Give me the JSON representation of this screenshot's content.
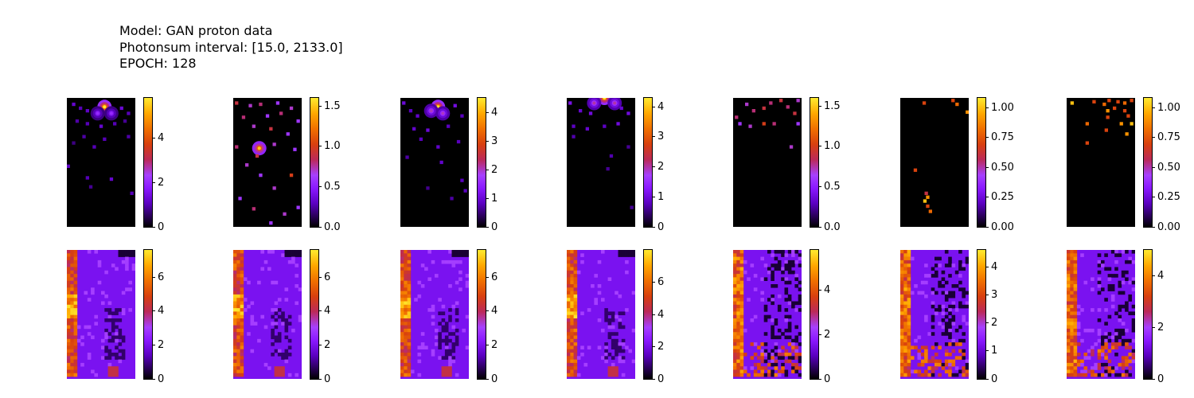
{
  "header": {
    "model": "Model: GAN proton data",
    "photonsum": "Photonsum interval: [15.0, 2133.0]",
    "epoch": "EPOCH: 128"
  },
  "colors": {
    "cmap_stops": [
      "#000000",
      "#5a00c0",
      "#8a19ff",
      "#bb2a5a",
      "#d8400f",
      "#f07000",
      "#ffa800",
      "#ffea30"
    ],
    "background": "#000000"
  },
  "chart_data": [
    {
      "type": "heatmap",
      "row": "top",
      "column": 1,
      "cmap": "gnuplot",
      "colorbar": {
        "ticks": [
          "0",
          "2",
          "4"
        ],
        "tick_values": [
          0,
          2,
          4
        ],
        "max": 5.8
      },
      "hotspots": [
        [
          0.55,
          0.07,
          5.8
        ],
        [
          0.45,
          0.12,
          2.0
        ],
        [
          0.65,
          0.12,
          2.0
        ]
      ],
      "points": [
        [
          0.1,
          0.05,
          1.2
        ],
        [
          0.2,
          0.08,
          1.0
        ],
        [
          0.3,
          0.1,
          1.1
        ],
        [
          0.8,
          0.08,
          1.3
        ],
        [
          0.9,
          0.12,
          1.0
        ],
        [
          0.15,
          0.18,
          0.9
        ],
        [
          0.3,
          0.2,
          1.0
        ],
        [
          0.5,
          0.22,
          1.2
        ],
        [
          0.7,
          0.2,
          1.0
        ],
        [
          0.85,
          0.18,
          0.8
        ],
        [
          0.25,
          0.3,
          0.9
        ],
        [
          0.55,
          0.32,
          1.0
        ],
        [
          0.1,
          0.35,
          0.7
        ],
        [
          0.9,
          0.3,
          0.9
        ],
        [
          0.4,
          0.38,
          1.0
        ],
        [
          0.02,
          0.53,
          1.1
        ],
        [
          0.3,
          0.62,
          1.0
        ],
        [
          0.65,
          0.63,
          1.2
        ],
        [
          0.35,
          0.69,
          0.8
        ],
        [
          0.95,
          0.74,
          1.0
        ]
      ]
    },
    {
      "type": "heatmap",
      "row": "top",
      "column": 2,
      "cmap": "gnuplot",
      "colorbar": {
        "ticks": [
          "0.0",
          "0.5",
          "1.0",
          "1.5"
        ],
        "tick_values": [
          0.0,
          0.5,
          1.0,
          1.5
        ],
        "max": 1.6
      },
      "hotspots": [
        [
          0.38,
          0.39,
          1.5
        ]
      ],
      "points": [
        [
          0.05,
          0.04,
          0.9
        ],
        [
          0.25,
          0.06,
          0.7
        ],
        [
          0.4,
          0.05,
          0.8
        ],
        [
          0.65,
          0.04,
          0.6
        ],
        [
          0.85,
          0.08,
          0.7
        ],
        [
          0.15,
          0.15,
          0.8
        ],
        [
          0.5,
          0.14,
          0.6
        ],
        [
          0.7,
          0.12,
          0.8
        ],
        [
          0.95,
          0.18,
          0.6
        ],
        [
          0.3,
          0.22,
          0.7
        ],
        [
          0.55,
          0.24,
          0.9
        ],
        [
          0.8,
          0.28,
          0.6
        ],
        [
          0.05,
          0.38,
          0.8
        ],
        [
          0.6,
          0.36,
          0.7
        ],
        [
          0.9,
          0.4,
          0.6
        ],
        [
          0.35,
          0.45,
          0.9
        ],
        [
          0.2,
          0.52,
          0.7
        ],
        [
          0.85,
          0.6,
          1.0
        ],
        [
          0.4,
          0.6,
          0.6
        ],
        [
          0.6,
          0.7,
          0.7
        ],
        [
          0.1,
          0.78,
          0.6
        ],
        [
          0.3,
          0.86,
          0.8
        ],
        [
          0.75,
          0.9,
          0.7
        ],
        [
          0.55,
          0.97,
          0.6
        ],
        [
          0.95,
          0.85,
          0.6
        ]
      ]
    },
    {
      "type": "heatmap",
      "row": "top",
      "column": 3,
      "cmap": "gnuplot",
      "colorbar": {
        "ticks": [
          "0",
          "1",
          "2",
          "3",
          "4"
        ],
        "tick_values": [
          0,
          1,
          2,
          3,
          4
        ],
        "max": 4.5
      },
      "hotspots": [
        [
          0.55,
          0.07,
          4.5
        ],
        [
          0.45,
          0.1,
          2.0
        ],
        [
          0.62,
          0.12,
          2.0
        ]
      ],
      "points": [
        [
          0.05,
          0.04,
          1.0
        ],
        [
          0.15,
          0.1,
          0.8
        ],
        [
          0.25,
          0.14,
          0.9
        ],
        [
          0.8,
          0.06,
          1.1
        ],
        [
          0.9,
          0.14,
          0.8
        ],
        [
          0.2,
          0.24,
          0.9
        ],
        [
          0.4,
          0.25,
          1.0
        ],
        [
          0.7,
          0.22,
          0.8
        ],
        [
          0.3,
          0.32,
          0.8
        ],
        [
          0.55,
          0.38,
          0.9
        ],
        [
          0.85,
          0.34,
          0.8
        ],
        [
          0.1,
          0.46,
          0.7
        ],
        [
          0.6,
          0.5,
          0.9
        ],
        [
          0.9,
          0.64,
          0.8
        ],
        [
          0.4,
          0.7,
          0.6
        ],
        [
          0.75,
          0.78,
          0.7
        ],
        [
          0.95,
          0.72,
          0.8
        ]
      ]
    },
    {
      "type": "heatmap",
      "row": "top",
      "column": 4,
      "cmap": "gnuplot",
      "colorbar": {
        "ticks": [
          "0",
          "1",
          "2",
          "3",
          "4"
        ],
        "tick_values": [
          0,
          1,
          2,
          3,
          4
        ],
        "max": 4.3
      },
      "hotspots": [
        [
          0.55,
          0.0,
          4.3
        ],
        [
          0.4,
          0.04,
          2.0
        ],
        [
          0.7,
          0.04,
          2.0
        ]
      ],
      "points": [
        [
          0.05,
          0.04,
          1.1
        ],
        [
          0.2,
          0.1,
          0.9
        ],
        [
          0.35,
          0.12,
          1.0
        ],
        [
          0.8,
          0.08,
          0.9
        ],
        [
          0.9,
          0.12,
          1.0
        ],
        [
          0.1,
          0.22,
          0.8
        ],
        [
          0.3,
          0.24,
          0.9
        ],
        [
          0.55,
          0.22,
          0.8
        ],
        [
          0.75,
          0.2,
          1.0
        ],
        [
          0.1,
          0.3,
          0.7
        ],
        [
          0.9,
          0.38,
          0.6
        ],
        [
          0.65,
          0.45,
          0.7
        ],
        [
          0.6,
          0.55,
          0.6
        ],
        [
          0.95,
          0.85,
          0.6
        ]
      ]
    },
    {
      "type": "heatmap",
      "row": "top",
      "column": 5,
      "cmap": "gnuplot",
      "colorbar": {
        "ticks": [
          "0.0",
          "0.5",
          "1.0",
          "1.5"
        ],
        "tick_values": [
          0.0,
          0.5,
          1.0,
          1.5
        ],
        "max": 1.6
      },
      "hotspots": [],
      "points": [
        [
          0.05,
          0.15,
          0.8
        ],
        [
          0.2,
          0.05,
          0.7
        ],
        [
          0.3,
          0.1,
          0.8
        ],
        [
          0.45,
          0.08,
          0.9
        ],
        [
          0.55,
          0.04,
          0.8
        ],
        [
          0.7,
          0.02,
          0.9
        ],
        [
          0.8,
          0.07,
          0.8
        ],
        [
          0.95,
          0.02,
          0.7
        ],
        [
          0.1,
          0.2,
          0.6
        ],
        [
          0.25,
          0.22,
          0.7
        ],
        [
          0.45,
          0.2,
          1.0
        ],
        [
          0.6,
          0.2,
          0.8
        ],
        [
          0.9,
          0.12,
          0.9
        ],
        [
          0.95,
          0.2,
          0.6
        ],
        [
          0.85,
          0.38,
          0.7
        ]
      ]
    },
    {
      "type": "heatmap",
      "row": "top",
      "column": 6,
      "cmap": "gnuplot",
      "colorbar": {
        "ticks": [
          "0.00",
          "0.25",
          "0.50",
          "0.75",
          "1.00"
        ],
        "tick_values": [
          0.0,
          0.25,
          0.5,
          0.75,
          1.0
        ],
        "max": 1.08
      },
      "hotspots": [],
      "points": [
        [
          0.35,
          0.04,
          0.7
        ],
        [
          0.77,
          0.02,
          0.7
        ],
        [
          0.83,
          0.05,
          0.8
        ],
        [
          0.98,
          0.11,
          0.9
        ],
        [
          0.22,
          0.56,
          0.7
        ],
        [
          0.38,
          0.74,
          0.6
        ],
        [
          0.4,
          0.77,
          0.9
        ],
        [
          0.36,
          0.8,
          1.0
        ],
        [
          0.4,
          0.84,
          0.7
        ],
        [
          0.44,
          0.88,
          0.8
        ]
      ]
    },
    {
      "type": "heatmap",
      "row": "top",
      "column": 7,
      "cmap": "gnuplot",
      "colorbar": {
        "ticks": [
          "0.00",
          "0.25",
          "0.50",
          "0.75",
          "1.00"
        ],
        "tick_values": [
          0.0,
          0.25,
          0.5,
          0.75,
          1.0
        ],
        "max": 1.08
      },
      "hotspots": [],
      "points": [
        [
          0.08,
          0.04,
          1.0
        ],
        [
          0.4,
          0.03,
          0.7
        ],
        [
          0.55,
          0.05,
          0.8
        ],
        [
          0.62,
          0.02,
          0.7
        ],
        [
          0.75,
          0.03,
          0.7
        ],
        [
          0.85,
          0.04,
          0.8
        ],
        [
          0.95,
          0.02,
          0.7
        ],
        [
          0.6,
          0.1,
          0.9
        ],
        [
          0.7,
          0.08,
          0.7
        ],
        [
          0.85,
          0.1,
          0.7
        ],
        [
          0.9,
          0.14,
          0.7
        ],
        [
          0.6,
          0.15,
          0.7
        ],
        [
          0.3,
          0.2,
          0.8
        ],
        [
          0.8,
          0.2,
          0.9
        ],
        [
          0.95,
          0.2,
          1.0
        ],
        [
          0.58,
          0.25,
          0.7
        ],
        [
          0.88,
          0.28,
          0.9
        ],
        [
          0.3,
          0.35,
          0.7
        ]
      ]
    },
    {
      "type": "heatmap",
      "row": "bottom",
      "column": 1,
      "cmap": "gnuplot",
      "texture": "fog",
      "colorbar": {
        "ticks": [
          "0",
          "2",
          "4",
          "6"
        ],
        "tick_values": [
          0,
          2,
          4,
          6
        ],
        "max": 7.6
      }
    },
    {
      "type": "heatmap",
      "row": "bottom",
      "column": 2,
      "cmap": "gnuplot",
      "texture": "fog",
      "colorbar": {
        "ticks": [
          "0",
          "2",
          "4",
          "6"
        ],
        "tick_values": [
          0,
          2,
          4,
          6
        ],
        "max": 7.6
      }
    },
    {
      "type": "heatmap",
      "row": "bottom",
      "column": 3,
      "cmap": "gnuplot",
      "texture": "fog",
      "colorbar": {
        "ticks": [
          "0",
          "2",
          "4",
          "6"
        ],
        "tick_values": [
          0,
          2,
          4,
          6
        ],
        "max": 7.6
      }
    },
    {
      "type": "heatmap",
      "row": "bottom",
      "column": 4,
      "cmap": "gnuplot",
      "texture": "fog",
      "colorbar": {
        "ticks": [
          "0",
          "2",
          "4",
          "6"
        ],
        "tick_values": [
          0,
          2,
          4,
          6
        ],
        "max": 8.0
      }
    },
    {
      "type": "heatmap",
      "row": "bottom",
      "column": 5,
      "cmap": "gnuplot",
      "texture": "streak",
      "colorbar": {
        "ticks": [
          "0",
          "2",
          "4"
        ],
        "tick_values": [
          0,
          2,
          4
        ],
        "max": 5.8
      }
    },
    {
      "type": "heatmap",
      "row": "bottom",
      "column": 6,
      "cmap": "gnuplot",
      "texture": "streak",
      "colorbar": {
        "ticks": [
          "0",
          "1",
          "2",
          "3",
          "4"
        ],
        "tick_values": [
          0,
          1,
          2,
          3,
          4
        ],
        "max": 4.6
      }
    },
    {
      "type": "heatmap",
      "row": "bottom",
      "column": 7,
      "cmap": "gnuplot",
      "texture": "streak",
      "colorbar": {
        "ticks": [
          "0",
          "2",
          "4"
        ],
        "tick_values": [
          0,
          2,
          4
        ],
        "max": 5.0
      }
    }
  ]
}
